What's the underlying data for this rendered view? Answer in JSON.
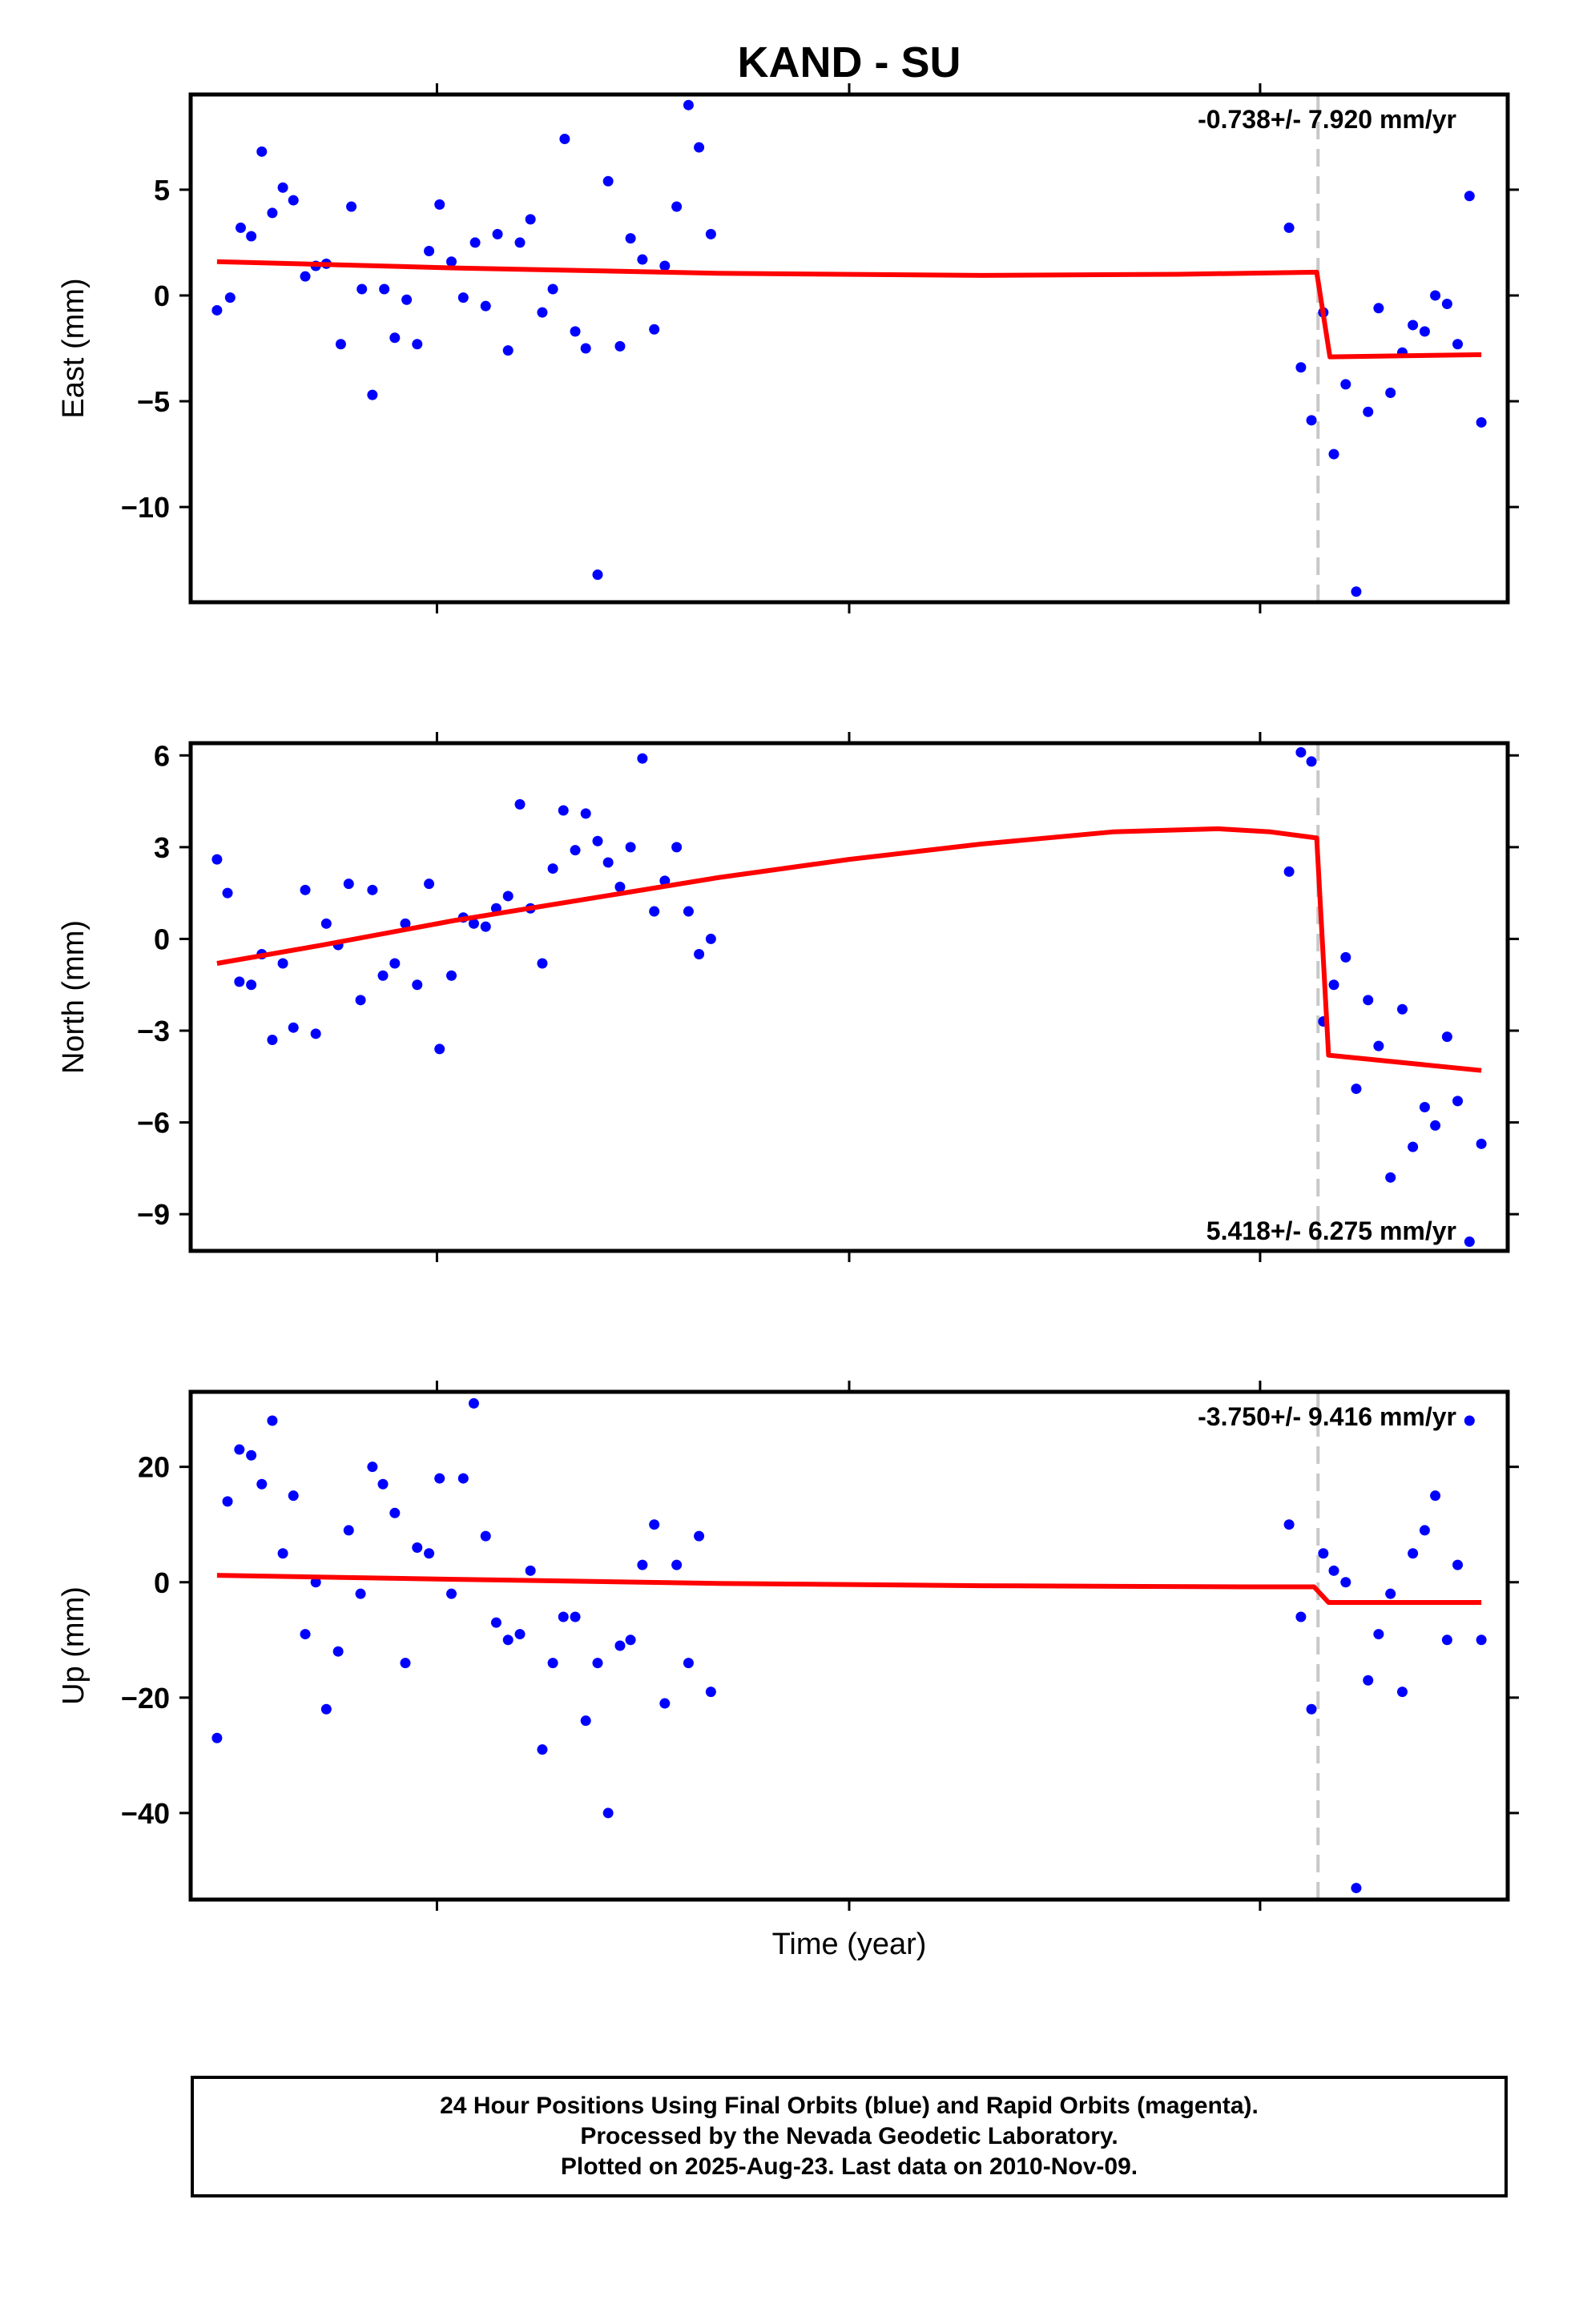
{
  "chart_data": {
    "type": "scatter",
    "title": "KAND - SU",
    "xlabel": "Time (year)",
    "breakline_color": "#c8c8c8",
    "point_color": "#0000ff",
    "fit_color": "#ff0000",
    "panels": [
      {
        "id": "east",
        "ylabel": "East (mm)",
        "ylim": [
          -14.5,
          9.5
        ],
        "yticks": [
          5,
          0,
          -5,
          -10
        ],
        "ytick_labels": [
          "5",
          "0",
          "−5",
          "−10"
        ],
        "rate_label": "-0.738+/- 7.920 mm/yr",
        "rate_position": "top-right",
        "points": [
          [
            0.02,
            -0.7
          ],
          [
            0.03,
            -0.1
          ],
          [
            0.038,
            3.2
          ],
          [
            0.046,
            2.8
          ],
          [
            0.054,
            6.8
          ],
          [
            0.062,
            3.9
          ],
          [
            0.07,
            5.1
          ],
          [
            0.078,
            4.5
          ],
          [
            0.087,
            0.9
          ],
          [
            0.095,
            1.4
          ],
          [
            0.103,
            1.5
          ],
          [
            0.114,
            -2.3
          ],
          [
            0.122,
            4.2
          ],
          [
            0.13,
            0.3
          ],
          [
            0.138,
            -4.7
          ],
          [
            0.147,
            0.3
          ],
          [
            0.155,
            -2.0
          ],
          [
            0.164,
            -0.2
          ],
          [
            0.172,
            -2.3
          ],
          [
            0.181,
            2.1
          ],
          [
            0.189,
            4.3
          ],
          [
            0.198,
            1.6
          ],
          [
            0.207,
            -0.1
          ],
          [
            0.216,
            2.5
          ],
          [
            0.224,
            -0.5
          ],
          [
            0.233,
            2.9
          ],
          [
            0.241,
            -2.6
          ],
          [
            0.25,
            2.5
          ],
          [
            0.258,
            3.6
          ],
          [
            0.267,
            -0.8
          ],
          [
            0.275,
            0.3
          ],
          [
            0.284,
            7.4
          ],
          [
            0.292,
            -1.7
          ],
          [
            0.3,
            -2.5
          ],
          [
            0.309,
            -13.2
          ],
          [
            0.317,
            5.4
          ],
          [
            0.326,
            -2.4
          ],
          [
            0.334,
            2.7
          ],
          [
            0.343,
            1.7
          ],
          [
            0.352,
            -1.6
          ],
          [
            0.36,
            1.4
          ],
          [
            0.369,
            4.2
          ],
          [
            0.378,
            9.0
          ],
          [
            0.386,
            7.0
          ],
          [
            0.395,
            2.9
          ],
          [
            0.834,
            3.2
          ],
          [
            0.843,
            -3.4
          ],
          [
            0.851,
            -5.9
          ],
          [
            0.86,
            -0.8
          ],
          [
            0.868,
            -7.5
          ],
          [
            0.877,
            -4.2
          ],
          [
            0.885,
            -14.0
          ],
          [
            0.894,
            -5.5
          ],
          [
            0.902,
            -0.6
          ],
          [
            0.911,
            -4.6
          ],
          [
            0.92,
            -2.7
          ],
          [
            0.928,
            -1.4
          ],
          [
            0.937,
            -1.7
          ],
          [
            0.945,
            0.0
          ],
          [
            0.954,
            -0.4
          ],
          [
            0.962,
            -2.3
          ],
          [
            0.971,
            4.7
          ],
          [
            0.98,
            -6.0
          ]
        ],
        "fit": [
          [
            0.02,
            1.6
          ],
          [
            0.2,
            1.3
          ],
          [
            0.4,
            1.05
          ],
          [
            0.6,
            0.95
          ],
          [
            0.75,
            1.0
          ],
          [
            0.855,
            1.1
          ],
          [
            0.865,
            -2.9
          ],
          [
            0.98,
            -2.8
          ]
        ]
      },
      {
        "id": "north",
        "ylabel": "North (mm)",
        "ylim": [
          -10.2,
          6.4
        ],
        "yticks": [
          6,
          3,
          0,
          -3,
          -6,
          -9
        ],
        "ytick_labels": [
          "6",
          "3",
          "0",
          "−3",
          "−6",
          "−9"
        ],
        "rate_label": "5.418+/- 6.275 mm/yr",
        "rate_position": "bottom-right",
        "points": [
          [
            0.02,
            2.6
          ],
          [
            0.028,
            1.5
          ],
          [
            0.037,
            -1.4
          ],
          [
            0.046,
            -1.5
          ],
          [
            0.054,
            -0.5
          ],
          [
            0.062,
            -3.3
          ],
          [
            0.07,
            -0.8
          ],
          [
            0.078,
            -2.9
          ],
          [
            0.087,
            1.6
          ],
          [
            0.095,
            -3.1
          ],
          [
            0.103,
            0.5
          ],
          [
            0.112,
            -0.2
          ],
          [
            0.12,
            1.8
          ],
          [
            0.129,
            -2.0
          ],
          [
            0.138,
            1.6
          ],
          [
            0.146,
            -1.2
          ],
          [
            0.155,
            -0.8
          ],
          [
            0.163,
            0.5
          ],
          [
            0.172,
            -1.5
          ],
          [
            0.181,
            1.8
          ],
          [
            0.189,
            -3.6
          ],
          [
            0.198,
            -1.2
          ],
          [
            0.207,
            0.7
          ],
          [
            0.215,
            0.5
          ],
          [
            0.224,
            0.4
          ],
          [
            0.232,
            1.0
          ],
          [
            0.241,
            1.4
          ],
          [
            0.25,
            4.4
          ],
          [
            0.258,
            1.0
          ],
          [
            0.267,
            -0.8
          ],
          [
            0.275,
            2.3
          ],
          [
            0.283,
            4.2
          ],
          [
            0.292,
            2.9
          ],
          [
            0.3,
            4.1
          ],
          [
            0.309,
            3.2
          ],
          [
            0.317,
            2.5
          ],
          [
            0.326,
            1.7
          ],
          [
            0.334,
            3.0
          ],
          [
            0.343,
            5.9
          ],
          [
            0.352,
            0.9
          ],
          [
            0.36,
            1.9
          ],
          [
            0.369,
            3.0
          ],
          [
            0.378,
            0.9
          ],
          [
            0.386,
            -0.5
          ],
          [
            0.395,
            0.0
          ],
          [
            0.834,
            2.2
          ],
          [
            0.843,
            6.1
          ],
          [
            0.851,
            5.8
          ],
          [
            0.86,
            -2.7
          ],
          [
            0.868,
            -1.5
          ],
          [
            0.877,
            -0.6
          ],
          [
            0.885,
            -4.9
          ],
          [
            0.894,
            -2.0
          ],
          [
            0.902,
            -3.5
          ],
          [
            0.911,
            -7.8
          ],
          [
            0.92,
            -2.3
          ],
          [
            0.928,
            -6.8
          ],
          [
            0.937,
            -5.5
          ],
          [
            0.945,
            -6.1
          ],
          [
            0.954,
            -3.2
          ],
          [
            0.962,
            -5.3
          ],
          [
            0.971,
            -9.9
          ],
          [
            0.98,
            -6.7
          ]
        ],
        "fit": [
          [
            0.02,
            -0.8
          ],
          [
            0.1,
            -0.2
          ],
          [
            0.2,
            0.6
          ],
          [
            0.3,
            1.3
          ],
          [
            0.4,
            2.0
          ],
          [
            0.5,
            2.6
          ],
          [
            0.6,
            3.1
          ],
          [
            0.7,
            3.5
          ],
          [
            0.78,
            3.6
          ],
          [
            0.82,
            3.5
          ],
          [
            0.855,
            3.3
          ],
          [
            0.864,
            -3.8
          ],
          [
            0.98,
            -4.3
          ]
        ]
      },
      {
        "id": "up",
        "ylabel": "Up (mm)",
        "ylim": [
          -55,
          33
        ],
        "yticks": [
          20,
          0,
          -20,
          -40
        ],
        "ytick_labels": [
          "20",
          "0",
          "−20",
          "−40"
        ],
        "rate_label": "-3.750+/- 9.416 mm/yr",
        "rate_position": "top-right",
        "points": [
          [
            0.02,
            -27
          ],
          [
            0.028,
            14
          ],
          [
            0.037,
            23
          ],
          [
            0.046,
            22
          ],
          [
            0.054,
            17
          ],
          [
            0.062,
            28
          ],
          [
            0.07,
            5
          ],
          [
            0.078,
            15
          ],
          [
            0.087,
            -9
          ],
          [
            0.095,
            0
          ],
          [
            0.103,
            -22
          ],
          [
            0.112,
            -12
          ],
          [
            0.12,
            9
          ],
          [
            0.129,
            -2
          ],
          [
            0.138,
            20
          ],
          [
            0.146,
            17
          ],
          [
            0.155,
            12
          ],
          [
            0.163,
            -14
          ],
          [
            0.172,
            6
          ],
          [
            0.181,
            5
          ],
          [
            0.189,
            18
          ],
          [
            0.198,
            -2
          ],
          [
            0.207,
            18
          ],
          [
            0.215,
            31
          ],
          [
            0.224,
            8
          ],
          [
            0.232,
            -7
          ],
          [
            0.241,
            -10
          ],
          [
            0.25,
            -9
          ],
          [
            0.258,
            2
          ],
          [
            0.267,
            -29
          ],
          [
            0.275,
            -14
          ],
          [
            0.283,
            -6
          ],
          [
            0.292,
            -6
          ],
          [
            0.3,
            -24
          ],
          [
            0.309,
            -14
          ],
          [
            0.317,
            -40
          ],
          [
            0.326,
            -11
          ],
          [
            0.334,
            -10
          ],
          [
            0.343,
            3
          ],
          [
            0.352,
            10
          ],
          [
            0.36,
            -21
          ],
          [
            0.369,
            3
          ],
          [
            0.378,
            -14
          ],
          [
            0.386,
            8
          ],
          [
            0.395,
            -19
          ],
          [
            0.834,
            10
          ],
          [
            0.843,
            -6
          ],
          [
            0.851,
            -22
          ],
          [
            0.86,
            5
          ],
          [
            0.868,
            2
          ],
          [
            0.877,
            0
          ],
          [
            0.885,
            -53
          ],
          [
            0.894,
            -17
          ],
          [
            0.902,
            -9
          ],
          [
            0.911,
            -2
          ],
          [
            0.92,
            -19
          ],
          [
            0.928,
            5
          ],
          [
            0.937,
            9
          ],
          [
            0.945,
            15
          ],
          [
            0.954,
            -10
          ],
          [
            0.962,
            3
          ],
          [
            0.971,
            28
          ],
          [
            0.98,
            -10
          ]
        ],
        "fit": [
          [
            0.02,
            1.2
          ],
          [
            0.2,
            0.5
          ],
          [
            0.4,
            -0.2
          ],
          [
            0.6,
            -0.6
          ],
          [
            0.8,
            -0.8
          ],
          [
            0.853,
            -0.8
          ],
          [
            0.864,
            -3.5
          ],
          [
            0.98,
            -3.5
          ]
        ]
      }
    ],
    "break_x": 0.856,
    "x_major_ticks": [
      0.187,
      0.5,
      0.812
    ]
  },
  "footer": {
    "line1": "24 Hour Positions Using Final Orbits (blue) and Rapid Orbits (magenta).",
    "line2": "Processed by the Nevada Geodetic Laboratory.",
    "line3": "Plotted on 2025-Aug-23. Last data on 2010-Nov-09."
  }
}
